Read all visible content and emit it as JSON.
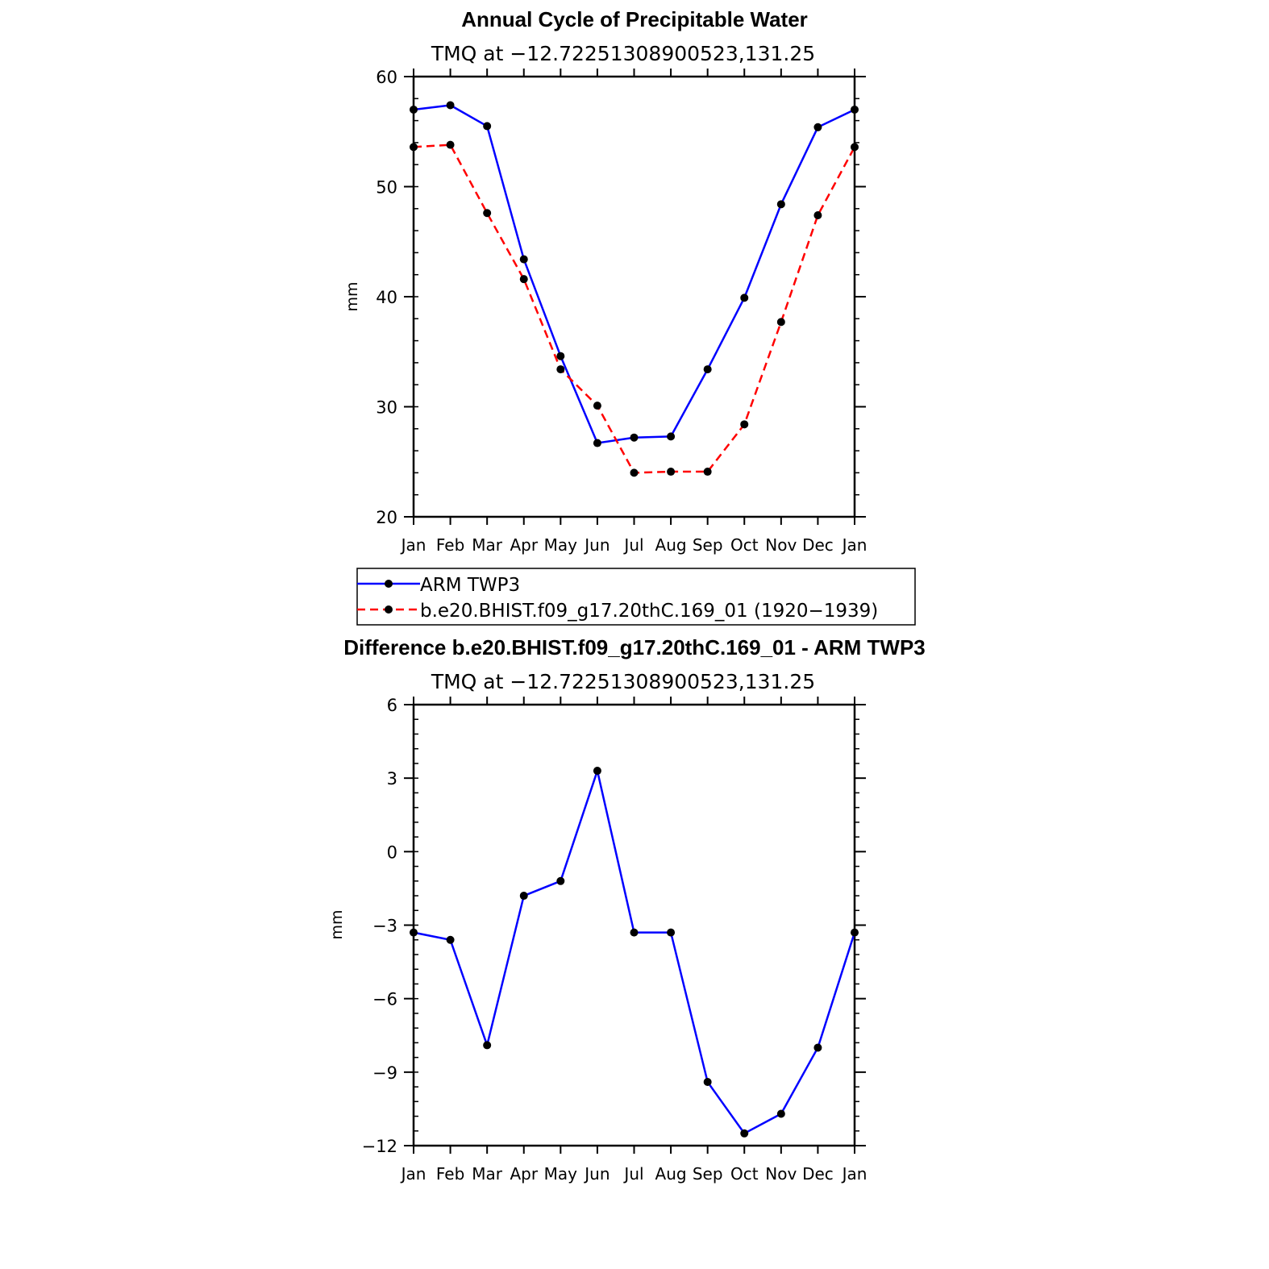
{
  "chart_data": [
    {
      "type": "line",
      "title": "Annual Cycle of Precipitable Water",
      "subtitle": "TMQ at −12.72251308900523,131.25",
      "ylabel": "mm",
      "ylim": [
        20,
        60
      ],
      "yticks": [
        "20",
        "30",
        "40",
        "50",
        "60"
      ],
      "ytick_values": [
        20,
        30,
        40,
        50,
        60
      ],
      "categories": [
        "Jan",
        "Feb",
        "Mar",
        "Apr",
        "May",
        "Jun",
        "Jul",
        "Aug",
        "Sep",
        "Oct",
        "Nov",
        "Dec",
        "Jan"
      ],
      "grid": false,
      "series": [
        {
          "name": "ARM TWP3",
          "color": "#0000ff",
          "dash": "solid",
          "values": [
            57.0,
            57.4,
            55.5,
            43.4,
            34.6,
            26.7,
            27.2,
            27.3,
            33.4,
            39.9,
            48.4,
            55.4,
            57.0
          ]
        },
        {
          "name": "b.e20.BHIST.f09_g17.20thC.169_01 (1920−1939)",
          "color": "#ff0000",
          "dash": "dashed",
          "values": [
            53.6,
            53.8,
            47.6,
            41.6,
            33.4,
            30.1,
            24.0,
            24.1,
            24.1,
            28.4,
            37.7,
            47.4,
            53.6
          ]
        }
      ],
      "legend": {
        "position": "below",
        "items": [
          "ARM TWP3",
          "b.e20.BHIST.f09_g17.20thC.169_01 (1920−1939)"
        ]
      }
    },
    {
      "type": "line",
      "title": "Difference b.e20.BHIST.f09_g17.20thC.169_01 - ARM TWP3",
      "subtitle": "TMQ at −12.72251308900523,131.25",
      "ylabel": "mm",
      "ylim": [
        -12,
        6
      ],
      "yticks": [
        "−12",
        "−9",
        "−6",
        "−3",
        "0",
        "3",
        "6"
      ],
      "ytick_values": [
        -12,
        -9,
        -6,
        -3,
        0,
        3,
        6
      ],
      "categories": [
        "Jan",
        "Feb",
        "Mar",
        "Apr",
        "May",
        "Jun",
        "Jul",
        "Aug",
        "Sep",
        "Oct",
        "Nov",
        "Dec",
        "Jan"
      ],
      "grid": false,
      "series": [
        {
          "color": "#0000ff",
          "dash": "solid",
          "values": [
            -3.3,
            -3.6,
            -7.9,
            -1.8,
            -1.2,
            3.3,
            -3.3,
            -3.3,
            -9.4,
            -11.5,
            -10.7,
            -8.0,
            -3.3
          ]
        }
      ]
    }
  ]
}
